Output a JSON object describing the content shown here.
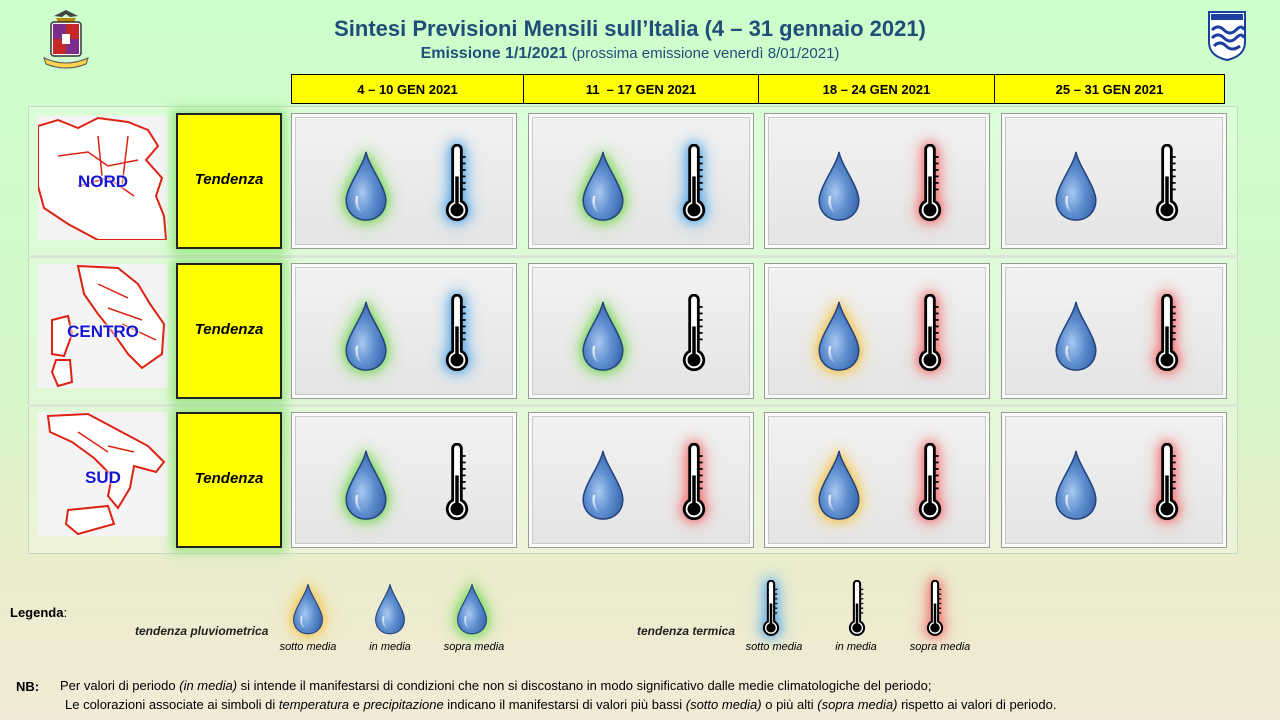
{
  "header": {
    "title": "Sintesi  Previsioni Mensili sull’Italia (4 – 31 gennaio 2021)",
    "subtitle_bold": "Emissione 1/1/2021",
    "subtitle_note": "(prossima emissione venerdì 8/01/2021)"
  },
  "periods": [
    "4 – 10 GEN 2021",
    "11  – 17 GEN 2021",
    "18 – 24 GEN 2021",
    "25 – 31 GEN 2021"
  ],
  "rows": [
    {
      "region": "NORD",
      "label": "Tendenza",
      "cells": [
        {
          "rain": "sopra media",
          "temp": "sotto media"
        },
        {
          "rain": "sopra media",
          "temp": "sotto media"
        },
        {
          "rain": "in media",
          "temp": "sopra media"
        },
        {
          "rain": "in media",
          "temp": "in media"
        }
      ]
    },
    {
      "region": "CENTRO",
      "label": "Tendenza",
      "cells": [
        {
          "rain": "sopra media",
          "temp": "sotto media"
        },
        {
          "rain": "sopra media",
          "temp": "in media"
        },
        {
          "rain": "sotto media",
          "temp": "sopra media"
        },
        {
          "rain": "in media",
          "temp": "sopra media"
        }
      ]
    },
    {
      "region": "SUD",
      "label": "Tendenza",
      "cells": [
        {
          "rain": "sopra media",
          "temp": "in media"
        },
        {
          "rain": "in media",
          "temp": "sopra media"
        },
        {
          "rain": "sotto media",
          "temp": "sopra media"
        },
        {
          "rain": "in media",
          "temp": "sopra media"
        }
      ]
    }
  ],
  "legend": {
    "title": "Legenda",
    "colon": ":",
    "rain_category": "tendenza pluviometrica",
    "temp_category": "tendenza termica",
    "labels": [
      "sotto media",
      "in media",
      "sopra media"
    ]
  },
  "notes": {
    "label": "NB:",
    "line1_parts": [
      "Per valori di periodo ",
      "(in media)",
      " si intende il manifestarsi di condizioni che non si discostano in modo significativo dalle medie climatologiche del periodo;"
    ],
    "line2_parts": [
      "Le colorazioni associate ai simboli di ",
      "temperatura",
      " e ",
      "precipitazione",
      " indicano il manifestarsi di valori più bassi ",
      "(sotto media)",
      " o più alti ",
      "(sopra media)",
      " rispetto ai valori di periodo."
    ]
  },
  "colors": {
    "grid_yellow": "#ffff00",
    "title_blue": "#1f4e79",
    "region_blue": "#1515d8",
    "glow_rain_above": "#8ee06c",
    "glow_rain_below": "#f7d26a",
    "glow_temp_above": "#f58b8b",
    "glow_temp_below": "#6db7ef"
  },
  "icons": {
    "rain": "water-drop-icon",
    "temperature": "thermometer-icon",
    "logo_left": "air-force-emblem-icon",
    "logo_right": "meteorological-service-logo-icon"
  }
}
